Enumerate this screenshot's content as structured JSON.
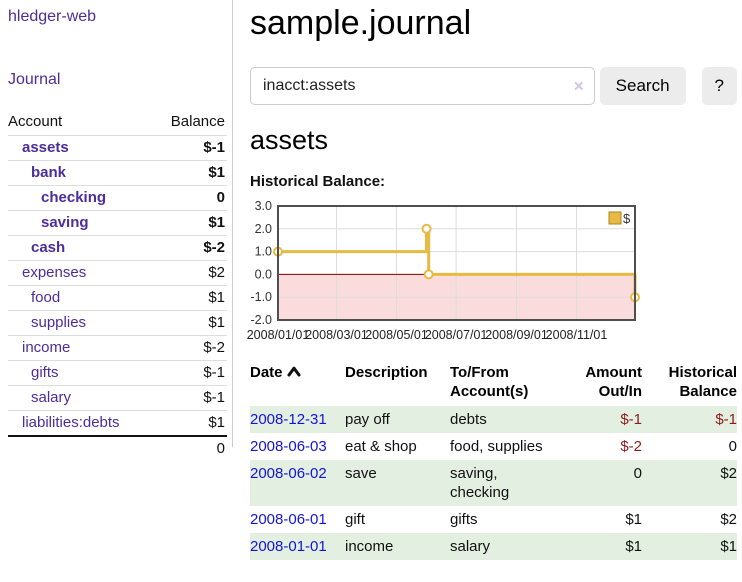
{
  "colors": {
    "link_purple": "#4c2d9c",
    "link_blue": "#1414d6",
    "negative_strong": "#8e1b1b",
    "negative_muted": "#b47272",
    "row_green": "#e3efe1",
    "button_bg": "#ececec",
    "chart_line": "#e8ba43",
    "chart_legend_border": "#a8861f",
    "chart_negative_region": "#fbdcdc",
    "chart_zero_line": "#8b0000",
    "chart_grid": "#dddddd",
    "chart_border": "#4f4f4f"
  },
  "sidebar": {
    "app_title": "hledger-web",
    "journal_label": "Journal",
    "accounts_header": {
      "account": "Account",
      "balance": "Balance"
    },
    "accounts": [
      {
        "name": "assets",
        "depth": 0,
        "bold": true,
        "balance": "$-1",
        "balance_style": "neg-strong"
      },
      {
        "name": "bank",
        "depth": 1,
        "bold": true,
        "balance": "$1",
        "balance_style": "plain"
      },
      {
        "name": "checking",
        "depth": 2,
        "bold": true,
        "balance": "0",
        "balance_style": "plain"
      },
      {
        "name": "saving",
        "depth": 2,
        "bold": true,
        "balance": "$1",
        "balance_style": "plain"
      },
      {
        "name": "cash",
        "depth": 1,
        "bold": true,
        "balance": "$-2",
        "balance_style": "neg-strong"
      },
      {
        "name": "expenses",
        "depth": 0,
        "bold": false,
        "balance": "$2",
        "balance_style": "plain"
      },
      {
        "name": "food",
        "depth": 1,
        "bold": false,
        "balance": "$1",
        "balance_style": "plain"
      },
      {
        "name": "supplies",
        "depth": 1,
        "bold": false,
        "balance": "$1",
        "balance_style": "plain"
      },
      {
        "name": "income",
        "depth": 0,
        "bold": false,
        "balance": "$-2",
        "balance_style": "neg-muted"
      },
      {
        "name": "gifts",
        "depth": 1,
        "bold": false,
        "balance": "$-1",
        "balance_style": "neg-muted"
      },
      {
        "name": "salary",
        "depth": 1,
        "bold": false,
        "link_color": "blue",
        "balance": "$-1",
        "balance_style": "neg-muted"
      },
      {
        "name": "liabilities:debts",
        "depth": 0,
        "bold": false,
        "balance": "$1",
        "balance_style": "plain"
      }
    ],
    "total": {
      "balance": "0"
    }
  },
  "main": {
    "title": "sample.journal",
    "search": {
      "value": "inacct:assets",
      "clear_icon": "×",
      "button_label": "Search",
      "help_label": "?"
    },
    "account_heading": "assets",
    "transactions": {
      "headers": {
        "date": "Date",
        "description": "Description",
        "tofrom": "To/From Account(s)",
        "amount": "Amount Out/In",
        "balance": "Historical Balance"
      },
      "rows": [
        {
          "date": "2008-12-31",
          "description": "pay off",
          "accounts": "debts",
          "amount": "$-1",
          "amount_negative": true,
          "balance": "$-1",
          "balance_negative": true
        },
        {
          "date": "2008-06-03",
          "description": "eat & shop",
          "accounts": "food, supplies",
          "amount": "$-2",
          "amount_negative": true,
          "balance": "0",
          "balance_negative": false
        },
        {
          "date": "2008-06-02",
          "description": "save",
          "accounts": "saving, checking",
          "amount": "0",
          "amount_negative": false,
          "balance": "$2",
          "balance_negative": false
        },
        {
          "date": "2008-06-01",
          "description": "gift",
          "accounts": "gifts",
          "amount": "$1",
          "amount_negative": false,
          "balance": "$2",
          "balance_negative": false
        },
        {
          "date": "2008-01-01",
          "description": "income",
          "accounts": "salary",
          "amount": "$1",
          "amount_negative": false,
          "balance": "$1",
          "balance_negative": false
        }
      ]
    }
  },
  "chart_data": {
    "type": "line",
    "title": "Historical Balance:",
    "step": true,
    "grid": true,
    "legend_position": "top-right",
    "ylim": [
      -2,
      3
    ],
    "yticks": [
      3,
      2,
      1,
      0,
      -1,
      -2
    ],
    "xticks": [
      {
        "label": "2008/01/01",
        "x": 0.0
      },
      {
        "label": "2008/03/01",
        "x": 0.164
      },
      {
        "label": "2008/05/01",
        "x": 0.332
      },
      {
        "label": "2008/07/01",
        "x": 0.499
      },
      {
        "label": "2008/09/01",
        "x": 0.668
      },
      {
        "label": "2008/11/01",
        "x": 0.836
      }
    ],
    "series": [
      {
        "name": "$",
        "points": [
          {
            "date": "2008-01-01",
            "x": 0.0,
            "y": 1
          },
          {
            "date": "2008-06-01",
            "x": 0.416,
            "y": 2
          },
          {
            "date": "2008-06-03",
            "x": 0.422,
            "y": 0
          },
          {
            "date": "2008-12-31",
            "x": 1.0,
            "y": -1
          }
        ]
      }
    ]
  }
}
